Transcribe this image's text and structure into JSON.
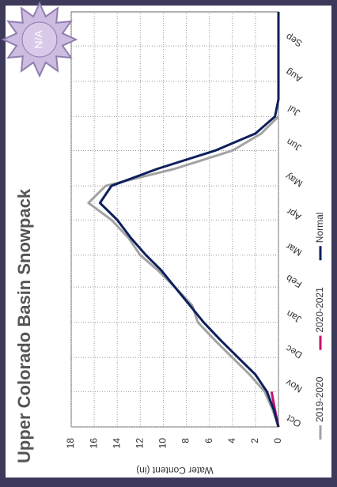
{
  "chart_data": {
    "type": "line",
    "title": "Upper Colorado Basin Snowpack",
    "badge": "N/A",
    "y_label": "Water Content (in)",
    "x": [
      0,
      15,
      31,
      46,
      61,
      76,
      92,
      107,
      123,
      138,
      151,
      166,
      182,
      197,
      212,
      227,
      243,
      258,
      273,
      288,
      304,
      319,
      335,
      350,
      365
    ],
    "xlim": [
      0,
      365
    ],
    "xticks": [
      {
        "value": 0,
        "label": "Oct"
      },
      {
        "value": 31,
        "label": "Nov"
      },
      {
        "value": 61,
        "label": "Dec"
      },
      {
        "value": 92,
        "label": "Jan"
      },
      {
        "value": 123,
        "label": "Feb"
      },
      {
        "value": 151,
        "label": "Mar"
      },
      {
        "value": 182,
        "label": "Apr"
      },
      {
        "value": 212,
        "label": "May"
      },
      {
        "value": 243,
        "label": "Jun"
      },
      {
        "value": 273,
        "label": "Jul"
      },
      {
        "value": 304,
        "label": "Aug"
      },
      {
        "value": 335,
        "label": "Sep"
      }
    ],
    "ylim": [
      0,
      18
    ],
    "yticks": [
      0,
      2,
      4,
      6,
      8,
      10,
      12,
      14,
      16,
      18
    ],
    "grid": true,
    "legend": "bottom",
    "series": [
      {
        "name": "2019-2020",
        "color": "#a3a3a3",
        "values": [
          0,
          0.5,
          1.2,
          2.5,
          4,
          5.5,
          7,
          7.5,
          9,
          10.5,
          12,
          13,
          14.5,
          16.5,
          15,
          9,
          4,
          1.5,
          0,
          null,
          null,
          null,
          null,
          null,
          null
        ]
      },
      {
        "name": "2020-2021",
        "color": "#c8106e",
        "values": [
          0,
          0.3,
          0.6,
          null,
          null,
          null,
          null,
          null,
          null,
          null,
          null,
          null,
          null,
          null,
          null,
          null,
          null,
          null,
          null,
          null,
          null,
          null,
          null,
          null,
          null
        ]
      },
      {
        "name": "Normal",
        "color": "#0d1f5c",
        "values": [
          0,
          0.4,
          1,
          2,
          3.5,
          5,
          6.5,
          7.7,
          9,
          10.2,
          11.5,
          12.8,
          14,
          15.5,
          14.5,
          10.5,
          5.5,
          2,
          0.3,
          0,
          0,
          0,
          0,
          0,
          0
        ]
      }
    ]
  }
}
